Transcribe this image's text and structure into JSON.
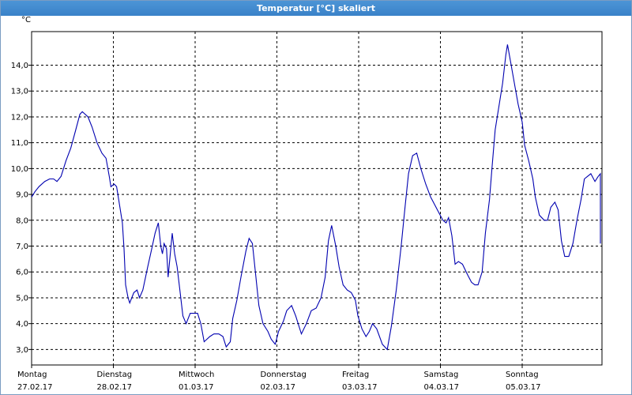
{
  "window": {
    "title": "Temperatur [°C] skaliert"
  },
  "colors": {
    "line": "#0000b0",
    "grid": "#000000",
    "titlebar": "#3a82c8"
  },
  "chart_data": {
    "type": "line",
    "title": "Temperatur [°C] skaliert",
    "unit": "°C",
    "ylim": [
      2.4,
      15.3
    ],
    "xlim": [
      0,
      7
    ],
    "grid": true,
    "y_ticks": [
      "3,0",
      "4,0",
      "5,0",
      "6,0",
      "7,0",
      "8,0",
      "9,0",
      "10,0",
      "11,0",
      "12,0",
      "13,0",
      "14,0"
    ],
    "y_tick_values": [
      3,
      4,
      5,
      6,
      7,
      8,
      9,
      10,
      11,
      12,
      13,
      14
    ],
    "x_tick_values": [
      0,
      1,
      2,
      3,
      4,
      5,
      6
    ],
    "x_ticks": [
      {
        "day": "Montag",
        "date": "27.02.17"
      },
      {
        "day": "Dienstag",
        "date": "28.02.17"
      },
      {
        "day": "Mittwoch",
        "date": "01.03.17"
      },
      {
        "day": "Donnerstag",
        "date": "02.03.17"
      },
      {
        "day": "Freitag",
        "date": "03.03.17"
      },
      {
        "day": "Samstag",
        "date": "04.03.17"
      },
      {
        "day": "Sonntag",
        "date": "05.03.17"
      }
    ],
    "series": [
      {
        "points": [
          [
            0.0,
            8.9
          ],
          [
            0.04,
            9.1
          ],
          [
            0.09,
            9.3
          ],
          [
            0.16,
            9.5
          ],
          [
            0.22,
            9.6
          ],
          [
            0.27,
            9.6
          ],
          [
            0.31,
            9.5
          ],
          [
            0.36,
            9.7
          ],
          [
            0.42,
            10.3
          ],
          [
            0.48,
            10.8
          ],
          [
            0.54,
            11.5
          ],
          [
            0.59,
            12.1
          ],
          [
            0.62,
            12.2
          ],
          [
            0.69,
            12.0
          ],
          [
            0.74,
            11.6
          ],
          [
            0.8,
            11.0
          ],
          [
            0.86,
            10.6
          ],
          [
            0.91,
            10.4
          ],
          [
            0.95,
            9.7
          ],
          [
            0.97,
            9.3
          ],
          [
            1.01,
            9.4
          ],
          [
            1.04,
            9.3
          ],
          [
            1.08,
            8.5
          ],
          [
            1.11,
            7.9
          ],
          [
            1.13,
            6.9
          ],
          [
            1.15,
            5.5
          ],
          [
            1.18,
            5.0
          ],
          [
            1.2,
            4.8
          ],
          [
            1.25,
            5.2
          ],
          [
            1.29,
            5.3
          ],
          [
            1.32,
            5.0
          ],
          [
            1.36,
            5.3
          ],
          [
            1.42,
            6.2
          ],
          [
            1.47,
            6.9
          ],
          [
            1.51,
            7.5
          ],
          [
            1.55,
            7.9
          ],
          [
            1.58,
            7.0
          ],
          [
            1.6,
            6.7
          ],
          [
            1.62,
            7.1
          ],
          [
            1.65,
            6.9
          ],
          [
            1.67,
            5.8
          ],
          [
            1.72,
            7.5
          ],
          [
            1.75,
            6.7
          ],
          [
            1.78,
            6.2
          ],
          [
            1.81,
            5.4
          ],
          [
            1.85,
            4.3
          ],
          [
            1.89,
            4.0
          ],
          [
            1.94,
            4.4
          ],
          [
            2.03,
            4.4
          ],
          [
            2.07,
            4.0
          ],
          [
            2.11,
            3.3
          ],
          [
            2.18,
            3.5
          ],
          [
            2.23,
            3.6
          ],
          [
            2.29,
            3.6
          ],
          [
            2.34,
            3.5
          ],
          [
            2.38,
            3.1
          ],
          [
            2.43,
            3.3
          ],
          [
            2.46,
            4.2
          ],
          [
            2.51,
            4.9
          ],
          [
            2.56,
            5.8
          ],
          [
            2.62,
            6.8
          ],
          [
            2.66,
            7.3
          ],
          [
            2.7,
            7.1
          ],
          [
            2.74,
            5.9
          ],
          [
            2.78,
            4.7
          ],
          [
            2.83,
            4.0
          ],
          [
            2.89,
            3.7
          ],
          [
            2.93,
            3.4
          ],
          [
            2.98,
            3.2
          ],
          [
            3.02,
            3.7
          ],
          [
            3.08,
            4.1
          ],
          [
            3.12,
            4.5
          ],
          [
            3.18,
            4.7
          ],
          [
            3.23,
            4.3
          ],
          [
            3.3,
            3.6
          ],
          [
            3.36,
            4.0
          ],
          [
            3.42,
            4.5
          ],
          [
            3.48,
            4.6
          ],
          [
            3.54,
            5.0
          ],
          [
            3.59,
            5.8
          ],
          [
            3.63,
            7.2
          ],
          [
            3.67,
            7.8
          ],
          [
            3.72,
            7.0
          ],
          [
            3.76,
            6.2
          ],
          [
            3.81,
            5.5
          ],
          [
            3.86,
            5.3
          ],
          [
            3.91,
            5.2
          ],
          [
            3.96,
            4.9
          ],
          [
            3.99,
            4.3
          ],
          [
            4.04,
            3.8
          ],
          [
            4.09,
            3.5
          ],
          [
            4.13,
            3.7
          ],
          [
            4.17,
            4.0
          ],
          [
            4.22,
            3.8
          ],
          [
            4.29,
            3.2
          ],
          [
            4.35,
            3.0
          ],
          [
            4.4,
            3.9
          ],
          [
            4.46,
            5.3
          ],
          [
            4.52,
            7.0
          ],
          [
            4.57,
            8.6
          ],
          [
            4.61,
            9.8
          ],
          [
            4.66,
            10.5
          ],
          [
            4.71,
            10.6
          ],
          [
            4.76,
            10.0
          ],
          [
            4.82,
            9.4
          ],
          [
            4.88,
            8.9
          ],
          [
            4.93,
            8.6
          ],
          [
            4.98,
            8.3
          ],
          [
            5.03,
            8.0
          ],
          [
            5.07,
            7.9
          ],
          [
            5.1,
            8.1
          ],
          [
            5.14,
            7.4
          ],
          [
            5.18,
            6.3
          ],
          [
            5.22,
            6.4
          ],
          [
            5.27,
            6.3
          ],
          [
            5.33,
            5.9
          ],
          [
            5.38,
            5.6
          ],
          [
            5.42,
            5.5
          ],
          [
            5.46,
            5.5
          ],
          [
            5.51,
            6.0
          ],
          [
            5.55,
            7.5
          ],
          [
            5.6,
            8.8
          ],
          [
            5.63,
            10.0
          ],
          [
            5.67,
            11.5
          ],
          [
            5.71,
            12.3
          ],
          [
            5.76,
            13.3
          ],
          [
            5.8,
            14.4
          ],
          [
            5.82,
            14.8
          ],
          [
            5.86,
            14.1
          ],
          [
            5.91,
            13.2
          ],
          [
            5.95,
            12.5
          ],
          [
            6.0,
            11.8
          ],
          [
            6.03,
            10.9
          ],
          [
            6.08,
            10.3
          ],
          [
            6.13,
            9.6
          ],
          [
            6.16,
            8.9
          ],
          [
            6.21,
            8.2
          ],
          [
            6.27,
            8.0
          ],
          [
            6.31,
            8.0
          ],
          [
            6.35,
            8.5
          ],
          [
            6.4,
            8.7
          ],
          [
            6.44,
            8.4
          ],
          [
            6.48,
            7.2
          ],
          [
            6.52,
            6.6
          ],
          [
            6.57,
            6.6
          ],
          [
            6.62,
            7.1
          ],
          [
            6.67,
            8.0
          ],
          [
            6.72,
            8.8
          ],
          [
            6.76,
            9.6
          ],
          [
            6.8,
            9.7
          ],
          [
            6.84,
            9.8
          ],
          [
            6.89,
            9.5
          ],
          [
            6.93,
            9.7
          ],
          [
            6.97,
            9.8
          ],
          [
            7.01,
            9.7
          ],
          [
            7.05,
            8.4
          ],
          [
            7.08,
            7.3
          ],
          [
            7.12,
            7.1
          ],
          [
            7.16,
            7.4
          ],
          [
            7.2,
            7.2
          ]
        ]
      }
    ]
  }
}
